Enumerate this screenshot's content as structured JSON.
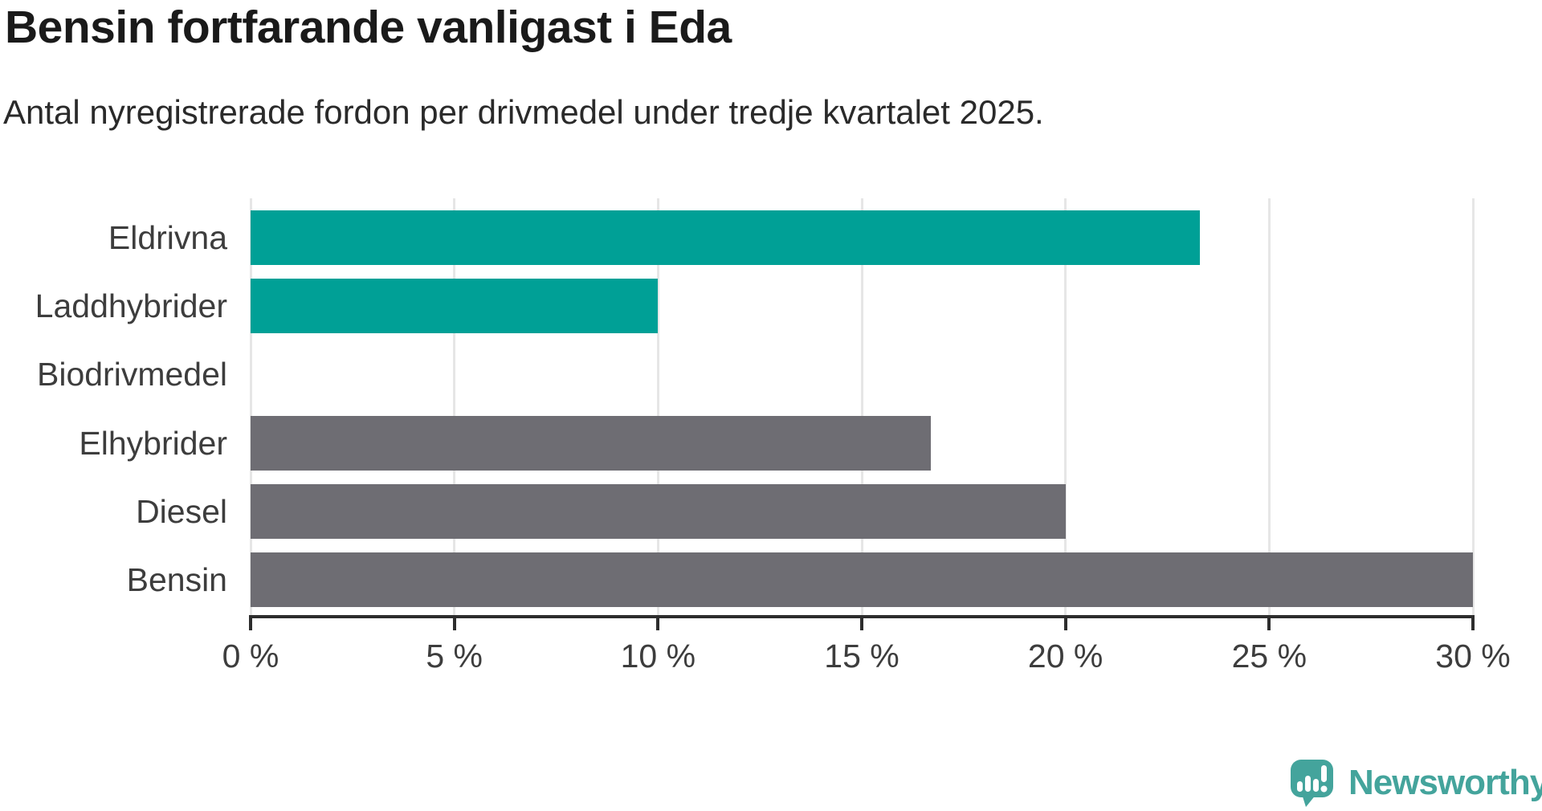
{
  "header": {
    "title": "Bensin fortfarande vanligast i Eda",
    "subtitle": "Antal nyregistrerade fordon per drivmedel under tredje kvartalet 2025."
  },
  "chart_data": {
    "type": "bar",
    "orientation": "horizontal",
    "title": "Bensin fortfarande vanligast i Eda",
    "subtitle": "Antal nyregistrerade fordon per drivmedel under tredje kvartalet 2025.",
    "categories": [
      "Eldrivna",
      "Laddhybrider",
      "Biodrivmedel",
      "Elhybrider",
      "Diesel",
      "Bensin"
    ],
    "values": [
      23.3,
      10.0,
      0.0,
      16.7,
      20.0,
      30.0
    ],
    "unit": "%",
    "highlighted": [
      true,
      true,
      false,
      false,
      false,
      false
    ],
    "xlim": [
      0,
      30
    ],
    "ticks": [
      0,
      5,
      10,
      15,
      20,
      25,
      30
    ],
    "tick_labels": [
      "0 %",
      "5 %",
      "10 %",
      "15 %",
      "20 %",
      "25 %",
      "30 %"
    ],
    "grid": "vertical-only",
    "legend": "none",
    "colors": {
      "accent": "#00a096",
      "muted": "#6e6d73",
      "gridline": "#e6e6e6",
      "axis": "#2d2d2d",
      "label": "#3d3d3d"
    }
  },
  "branding": {
    "logo_text": "Newsworthy",
    "logo_color": "#44a49c",
    "logo_icon": "speech-bubble-bar-chart-exclamation"
  }
}
